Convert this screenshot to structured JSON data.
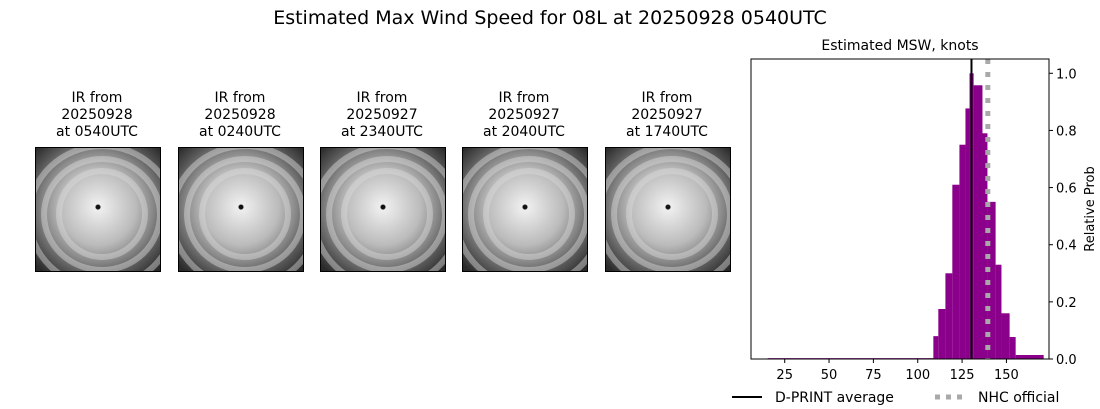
{
  "title": "Estimated Max Wind Speed for 08L at 20250928 0540UTC",
  "panels": [
    {
      "line1": "IR from",
      "line2": "20250928",
      "line3": "at 0540UTC"
    },
    {
      "line1": "IR from",
      "line2": "20250928",
      "line3": "at 0240UTC"
    },
    {
      "line1": "IR from",
      "line2": "20250927",
      "line3": "at 2340UTC"
    },
    {
      "line1": "IR from",
      "line2": "20250927",
      "line3": "at 2040UTC"
    },
    {
      "line1": "IR from",
      "line2": "20250927",
      "line3": "at 1740UTC"
    }
  ],
  "chart_data": {
    "type": "bar",
    "title": "Estimated MSW, knots",
    "xlabel": "",
    "ylabel": "Relative Prob",
    "xlim": [
      6,
      174
    ],
    "ylim": [
      0,
      1.05
    ],
    "xticks": [
      25,
      50,
      75,
      100,
      125,
      150
    ],
    "yticks": [
      "0.0",
      "0.2",
      "0.4",
      "0.6",
      "0.8",
      "1.0"
    ],
    "bar_color": "#8b008b",
    "bins": [
      {
        "left": 15.4,
        "right": 108.8,
        "value": 0.003
      },
      {
        "left": 108.8,
        "right": 111.6,
        "value": 0.08
      },
      {
        "left": 111.6,
        "right": 115.6,
        "value": 0.175
      },
      {
        "left": 115.6,
        "right": 119.5,
        "value": 0.3
      },
      {
        "left": 119.5,
        "right": 123.5,
        "value": 0.61
      },
      {
        "left": 123.5,
        "right": 126.9,
        "value": 0.75
      },
      {
        "left": 126.9,
        "right": 129.2,
        "value": 0.877
      },
      {
        "left": 129.2,
        "right": 131.5,
        "value": 1.0
      },
      {
        "left": 131.5,
        "right": 136.5,
        "value": 0.958
      },
      {
        "left": 136.5,
        "right": 139.3,
        "value": 0.79
      },
      {
        "left": 139.3,
        "right": 143.9,
        "value": 0.55
      },
      {
        "left": 143.9,
        "right": 147.2,
        "value": 0.33
      },
      {
        "left": 147.2,
        "right": 151.8,
        "value": 0.16
      },
      {
        "left": 151.8,
        "right": 155.2,
        "value": 0.077
      },
      {
        "left": 155.2,
        "right": 171.0,
        "value": 0.014
      }
    ],
    "dprint_average": 130.3,
    "nhc_official": 139.5,
    "legend": [
      {
        "label": "D-PRINT average",
        "color": "#000000",
        "style": "solid"
      },
      {
        "label": "NHC official",
        "color": "#a9a9a9",
        "style": "dotted"
      }
    ],
    "legend_placement": "bottom"
  }
}
